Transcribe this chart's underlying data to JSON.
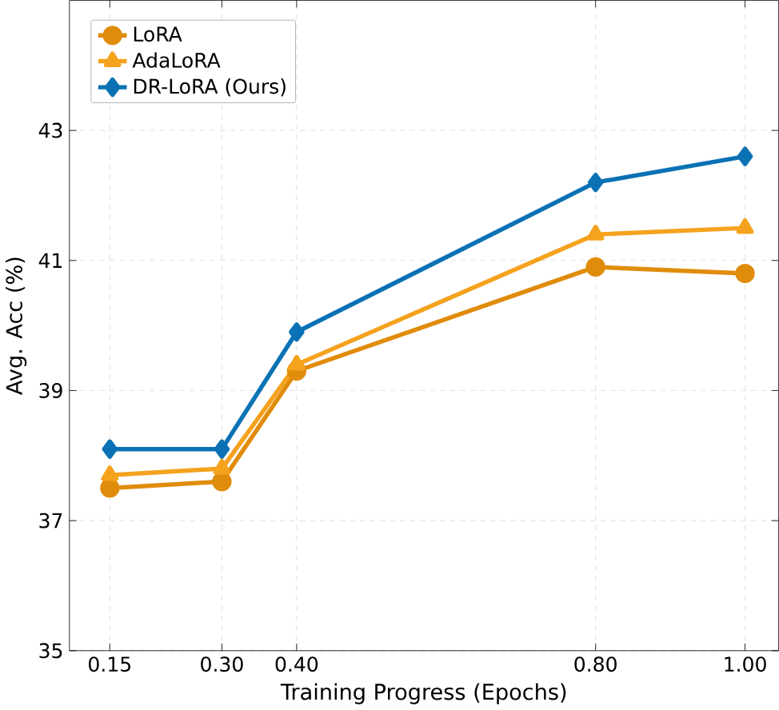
{
  "chart_data": {
    "type": "line",
    "xlabel": "Training Progress (Epochs)",
    "ylabel": "Avg. Acc (%)",
    "x": [
      0.15,
      0.3,
      0.4,
      0.8,
      1.0
    ],
    "series": [
      {
        "name": "LoRA",
        "color": "#e08c0b",
        "marker": "circle",
        "values": [
          37.5,
          37.6,
          39.3,
          40.9,
          40.8
        ]
      },
      {
        "name": "AdaLoRA",
        "color": "#f5a21e",
        "marker": "triangle",
        "values": [
          37.7,
          37.8,
          39.4,
          41.4,
          41.5
        ]
      },
      {
        "name": "DR-LoRA (Ours)",
        "color": "#0a72b4",
        "marker": "diamond",
        "values": [
          38.1,
          38.1,
          39.9,
          42.2,
          42.6
        ]
      }
    ],
    "xlim": [
      0.096,
      1.045
    ],
    "ylim": [
      35,
      45
    ],
    "xticks": [
      {
        "value": 0.15,
        "label": "0.15"
      },
      {
        "value": 0.3,
        "label": "0.30"
      },
      {
        "value": 0.4,
        "label": "0.40"
      },
      {
        "value": 0.8,
        "label": "0.80"
      },
      {
        "value": 1.0,
        "label": "1.00"
      }
    ],
    "yticks": [
      35,
      37,
      39,
      41,
      43
    ],
    "grid": true,
    "legend": "top left",
    "line_style": "solid"
  }
}
